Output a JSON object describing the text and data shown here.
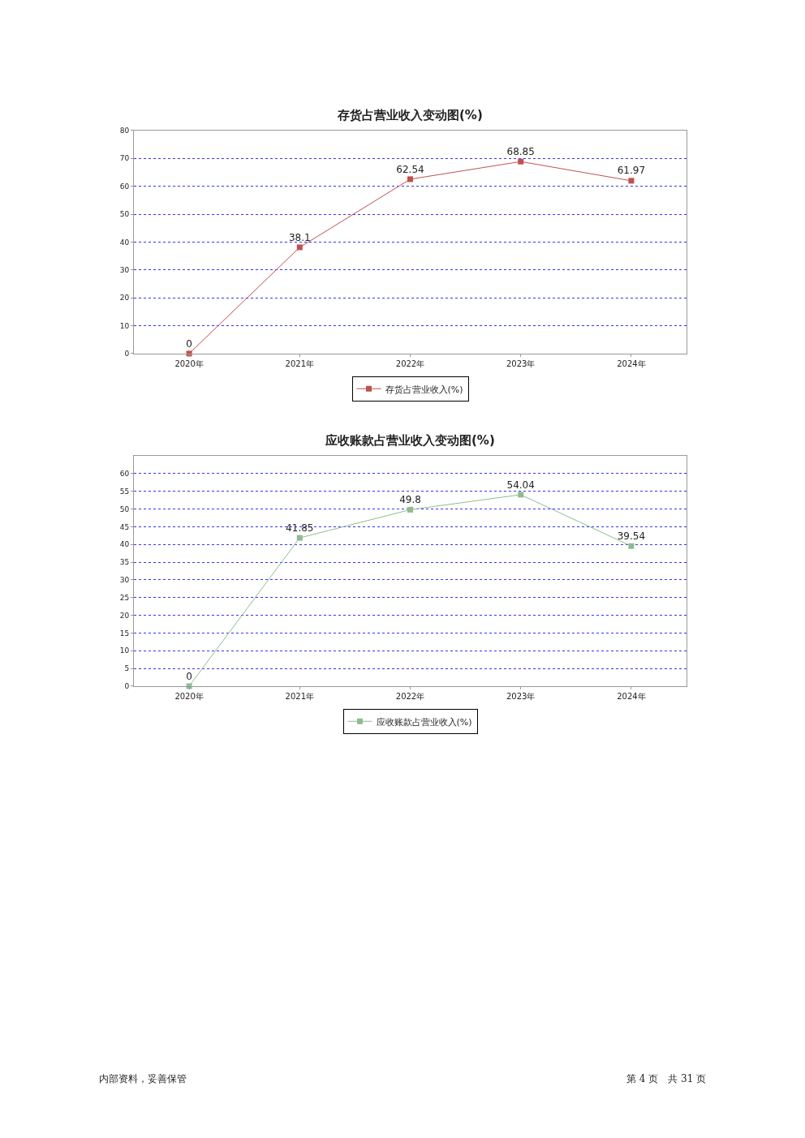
{
  "chart_data": [
    {
      "type": "line",
      "title": "存货占营业收入变动图(%)",
      "categories": [
        "2020年",
        "2021年",
        "2022年",
        "2023年",
        "2024年"
      ],
      "series": [
        {
          "name": "存货占营业收入(%)",
          "color": "#c0504d",
          "values": [
            0,
            38.1,
            62.54,
            68.85,
            61.97
          ]
        }
      ],
      "ylim": [
        0,
        80
      ],
      "yticks": [
        0,
        10,
        20,
        30,
        40,
        50,
        60,
        70,
        80
      ],
      "grid": "y",
      "legend": "bottom",
      "marker": "square",
      "line_style": "solid",
      "data_labels": true
    },
    {
      "type": "line",
      "title": "应收账款占营业收入变动图(%)",
      "categories": [
        "2020年",
        "2021年",
        "2022年",
        "2023年",
        "2024年"
      ],
      "series": [
        {
          "name": "应收账款占营业收入(%)",
          "color": "#8fbc8f",
          "values": [
            0,
            41.85,
            49.8,
            54.04,
            39.54
          ]
        }
      ],
      "ylim": [
        0,
        65
      ],
      "yticks": [
        0,
        5,
        10,
        15,
        20,
        25,
        30,
        35,
        40,
        45,
        50,
        55,
        60
      ],
      "grid": "y",
      "legend": "bottom",
      "marker": "square",
      "line_style": "solid",
      "data_labels": true,
      "annotations": [
        "内部资料，妥善保管",
        "第 4 页　共 31 页"
      ]
    }
  ]
}
